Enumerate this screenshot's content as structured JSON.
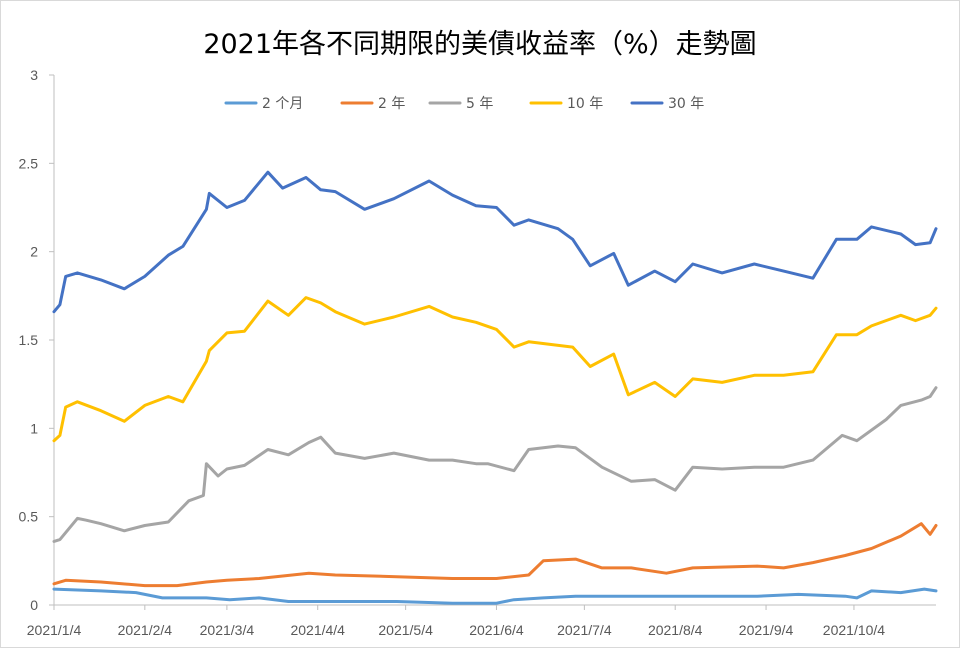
{
  "chart_data": {
    "type": "line",
    "title": "2021年各不同期限的美債收益率（%）走勢圖",
    "xlabel": "",
    "ylabel": "",
    "ylim": [
      0,
      3
    ],
    "yticks": [
      "0",
      "0.5",
      "1",
      "1.5",
      "2",
      "2.5",
      "3"
    ],
    "x_tick_labels": [
      "2021/1/4",
      "2021/2/4",
      "2021/3/4",
      "2021/4/4",
      "2021/5/4",
      "2021/6/4",
      "2021/7/4",
      "2021/8/4",
      "2021/9/4",
      "2021/10/4"
    ],
    "x_ticks": [
      "2021-01-04",
      "2021-02-04",
      "2021-03-04",
      "2021-04-04",
      "2021-05-04",
      "2021-06-04",
      "2021-07-04",
      "2021-08-04",
      "2021-09-04",
      "2021-10-04"
    ],
    "xlim": [
      "2021-01-04",
      "2021-11-01"
    ],
    "grid": false,
    "legend_position": "top",
    "series": [
      {
        "name": "2 个月",
        "color": "#5b9bd5",
        "points": [
          [
            "2021-01-04",
            0.09
          ],
          [
            "2021-01-20",
            0.08
          ],
          [
            "2021-02-01",
            0.07
          ],
          [
            "2021-02-10",
            0.04
          ],
          [
            "2021-02-25",
            0.04
          ],
          [
            "2021-03-05",
            0.03
          ],
          [
            "2021-03-15",
            0.04
          ],
          [
            "2021-03-25",
            0.02
          ],
          [
            "2021-04-01",
            0.02
          ],
          [
            "2021-04-10",
            0.02
          ],
          [
            "2021-05-01",
            0.02
          ],
          [
            "2021-05-20",
            0.01
          ],
          [
            "2021-06-04",
            0.01
          ],
          [
            "2021-06-10",
            0.03
          ],
          [
            "2021-06-20",
            0.04
          ],
          [
            "2021-07-01",
            0.05
          ],
          [
            "2021-08-01",
            0.05
          ],
          [
            "2021-09-01",
            0.05
          ],
          [
            "2021-09-15",
            0.06
          ],
          [
            "2021-10-01",
            0.05
          ],
          [
            "2021-10-05",
            0.04
          ],
          [
            "2021-10-10",
            0.08
          ],
          [
            "2021-10-20",
            0.07
          ],
          [
            "2021-10-28",
            0.09
          ],
          [
            "2021-11-01",
            0.08
          ]
        ]
      },
      {
        "name": "2 年",
        "color": "#ed7d31",
        "points": [
          [
            "2021-01-04",
            0.12
          ],
          [
            "2021-01-08",
            0.14
          ],
          [
            "2021-01-20",
            0.13
          ],
          [
            "2021-02-04",
            0.11
          ],
          [
            "2021-02-15",
            0.11
          ],
          [
            "2021-02-25",
            0.13
          ],
          [
            "2021-03-04",
            0.14
          ],
          [
            "2021-03-15",
            0.15
          ],
          [
            "2021-04-01",
            0.18
          ],
          [
            "2021-04-10",
            0.17
          ],
          [
            "2021-05-01",
            0.16
          ],
          [
            "2021-05-20",
            0.15
          ],
          [
            "2021-06-04",
            0.15
          ],
          [
            "2021-06-15",
            0.17
          ],
          [
            "2021-06-20",
            0.25
          ],
          [
            "2021-07-01",
            0.26
          ],
          [
            "2021-07-10",
            0.21
          ],
          [
            "2021-07-20",
            0.21
          ],
          [
            "2021-08-01",
            0.18
          ],
          [
            "2021-08-10",
            0.21
          ],
          [
            "2021-09-01",
            0.22
          ],
          [
            "2021-09-10",
            0.21
          ],
          [
            "2021-09-20",
            0.24
          ],
          [
            "2021-10-01",
            0.28
          ],
          [
            "2021-10-10",
            0.32
          ],
          [
            "2021-10-20",
            0.39
          ],
          [
            "2021-10-27",
            0.46
          ],
          [
            "2021-10-30",
            0.4
          ],
          [
            "2021-11-01",
            0.45
          ]
        ]
      },
      {
        "name": "5 年",
        "color": "#a5a5a5",
        "points": [
          [
            "2021-01-04",
            0.36
          ],
          [
            "2021-01-06",
            0.37
          ],
          [
            "2021-01-12",
            0.49
          ],
          [
            "2021-01-15",
            0.48
          ],
          [
            "2021-01-20",
            0.46
          ],
          [
            "2021-01-28",
            0.42
          ],
          [
            "2021-02-04",
            0.45
          ],
          [
            "2021-02-12",
            0.47
          ],
          [
            "2021-02-19",
            0.59
          ],
          [
            "2021-02-24",
            0.62
          ],
          [
            "2021-02-25",
            0.8
          ],
          [
            "2021-03-01",
            0.73
          ],
          [
            "2021-03-04",
            0.77
          ],
          [
            "2021-03-10",
            0.79
          ],
          [
            "2021-03-18",
            0.88
          ],
          [
            "2021-03-25",
            0.85
          ],
          [
            "2021-04-01",
            0.92
          ],
          [
            "2021-04-05",
            0.95
          ],
          [
            "2021-04-10",
            0.86
          ],
          [
            "2021-04-20",
            0.83
          ],
          [
            "2021-04-30",
            0.86
          ],
          [
            "2021-05-12",
            0.82
          ],
          [
            "2021-05-20",
            0.82
          ],
          [
            "2021-05-28",
            0.8
          ],
          [
            "2021-06-01",
            0.8
          ],
          [
            "2021-06-10",
            0.76
          ],
          [
            "2021-06-15",
            0.88
          ],
          [
            "2021-06-25",
            0.9
          ],
          [
            "2021-07-01",
            0.89
          ],
          [
            "2021-07-10",
            0.78
          ],
          [
            "2021-07-20",
            0.7
          ],
          [
            "2021-07-28",
            0.71
          ],
          [
            "2021-08-04",
            0.65
          ],
          [
            "2021-08-10",
            0.78
          ],
          [
            "2021-08-20",
            0.77
          ],
          [
            "2021-08-31",
            0.78
          ],
          [
            "2021-09-10",
            0.78
          ],
          [
            "2021-09-20",
            0.82
          ],
          [
            "2021-09-30",
            0.96
          ],
          [
            "2021-10-05",
            0.93
          ],
          [
            "2021-10-15",
            1.05
          ],
          [
            "2021-10-20",
            1.13
          ],
          [
            "2021-10-27",
            1.16
          ],
          [
            "2021-10-30",
            1.18
          ],
          [
            "2021-11-01",
            1.23
          ]
        ]
      },
      {
        "name": "10 年",
        "color": "#ffc000",
        "points": [
          [
            "2021-01-04",
            0.93
          ],
          [
            "2021-01-06",
            0.96
          ],
          [
            "2021-01-08",
            1.12
          ],
          [
            "2021-01-12",
            1.15
          ],
          [
            "2021-01-20",
            1.1
          ],
          [
            "2021-01-28",
            1.04
          ],
          [
            "2021-02-04",
            1.13
          ],
          [
            "2021-02-12",
            1.18
          ],
          [
            "2021-02-17",
            1.15
          ],
          [
            "2021-02-25",
            1.38
          ],
          [
            "2021-02-26",
            1.44
          ],
          [
            "2021-03-04",
            1.54
          ],
          [
            "2021-03-10",
            1.55
          ],
          [
            "2021-03-18",
            1.72
          ],
          [
            "2021-03-25",
            1.64
          ],
          [
            "2021-03-31",
            1.74
          ],
          [
            "2021-04-05",
            1.71
          ],
          [
            "2021-04-10",
            1.66
          ],
          [
            "2021-04-20",
            1.59
          ],
          [
            "2021-04-30",
            1.63
          ],
          [
            "2021-05-12",
            1.69
          ],
          [
            "2021-05-20",
            1.63
          ],
          [
            "2021-05-28",
            1.6
          ],
          [
            "2021-06-04",
            1.56
          ],
          [
            "2021-06-10",
            1.46
          ],
          [
            "2021-06-15",
            1.49
          ],
          [
            "2021-06-30",
            1.46
          ],
          [
            "2021-07-06",
            1.35
          ],
          [
            "2021-07-14",
            1.42
          ],
          [
            "2021-07-19",
            1.19
          ],
          [
            "2021-07-28",
            1.26
          ],
          [
            "2021-08-04",
            1.18
          ],
          [
            "2021-08-10",
            1.28
          ],
          [
            "2021-08-20",
            1.26
          ],
          [
            "2021-08-31",
            1.3
          ],
          [
            "2021-09-10",
            1.3
          ],
          [
            "2021-09-20",
            1.32
          ],
          [
            "2021-09-28",
            1.53
          ],
          [
            "2021-10-05",
            1.53
          ],
          [
            "2021-10-10",
            1.58
          ],
          [
            "2021-10-20",
            1.64
          ],
          [
            "2021-10-25",
            1.61
          ],
          [
            "2021-10-30",
            1.64
          ],
          [
            "2021-11-01",
            1.68
          ]
        ]
      },
      {
        "name": "30 年",
        "color": "#4472c4",
        "points": [
          [
            "2021-01-04",
            1.66
          ],
          [
            "2021-01-06",
            1.7
          ],
          [
            "2021-01-08",
            1.86
          ],
          [
            "2021-01-12",
            1.88
          ],
          [
            "2021-01-20",
            1.84
          ],
          [
            "2021-01-28",
            1.79
          ],
          [
            "2021-02-04",
            1.86
          ],
          [
            "2021-02-12",
            1.98
          ],
          [
            "2021-02-17",
            2.03
          ],
          [
            "2021-02-25",
            2.24
          ],
          [
            "2021-02-26",
            2.33
          ],
          [
            "2021-03-04",
            2.25
          ],
          [
            "2021-03-10",
            2.29
          ],
          [
            "2021-03-18",
            2.45
          ],
          [
            "2021-03-23",
            2.36
          ],
          [
            "2021-03-31",
            2.42
          ],
          [
            "2021-04-05",
            2.35
          ],
          [
            "2021-04-10",
            2.34
          ],
          [
            "2021-04-20",
            2.24
          ],
          [
            "2021-04-30",
            2.3
          ],
          [
            "2021-05-12",
            2.4
          ],
          [
            "2021-05-20",
            2.32
          ],
          [
            "2021-05-28",
            2.26
          ],
          [
            "2021-06-04",
            2.25
          ],
          [
            "2021-06-10",
            2.15
          ],
          [
            "2021-06-15",
            2.18
          ],
          [
            "2021-06-25",
            2.13
          ],
          [
            "2021-06-30",
            2.07
          ],
          [
            "2021-07-06",
            1.92
          ],
          [
            "2021-07-14",
            1.99
          ],
          [
            "2021-07-19",
            1.81
          ],
          [
            "2021-07-28",
            1.89
          ],
          [
            "2021-08-04",
            1.83
          ],
          [
            "2021-08-10",
            1.93
          ],
          [
            "2021-08-20",
            1.88
          ],
          [
            "2021-08-31",
            1.93
          ],
          [
            "2021-09-10",
            1.89
          ],
          [
            "2021-09-20",
            1.85
          ],
          [
            "2021-09-28",
            2.07
          ],
          [
            "2021-10-05",
            2.07
          ],
          [
            "2021-10-10",
            2.14
          ],
          [
            "2021-10-20",
            2.1
          ],
          [
            "2021-10-25",
            2.04
          ],
          [
            "2021-10-30",
            2.05
          ],
          [
            "2021-11-01",
            2.13
          ]
        ]
      }
    ]
  }
}
